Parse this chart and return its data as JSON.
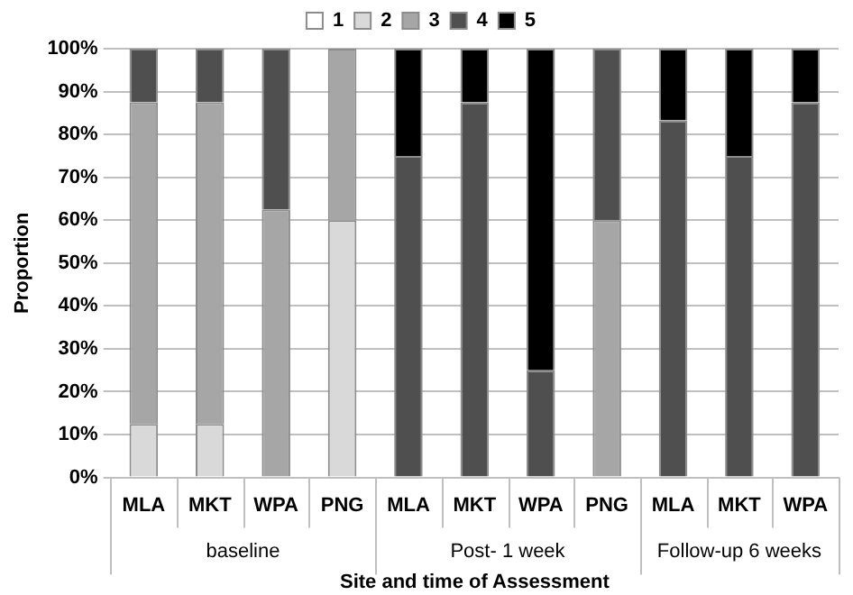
{
  "chart_data": {
    "type": "bar",
    "stacked": true,
    "xlabel": "Site and time of Assessment",
    "ylabel": "Proportion",
    "categories": [
      "MLA",
      "MKT",
      "WPA",
      "PNG",
      "MLA",
      "MKT",
      "WPA",
      "PNG",
      "MLA",
      "MKT",
      "WPA"
    ],
    "series": [
      {
        "name": "1",
        "color": "#ffffff",
        "values": [
          0,
          0,
          0,
          0,
          0,
          0,
          0,
          0,
          0,
          0,
          0
        ]
      },
      {
        "name": "2",
        "color": "#d9d9d9",
        "values": [
          12.5,
          12.5,
          0,
          60,
          0,
          0,
          0,
          0,
          0,
          0,
          0
        ]
      },
      {
        "name": "3",
        "color": "#a6a6a6",
        "values": [
          75,
          75,
          62.5,
          40,
          0,
          0,
          0,
          60,
          0,
          0,
          0
        ]
      },
      {
        "name": "4",
        "color": "#4f4f4f",
        "values": [
          12.5,
          12.5,
          37.5,
          0,
          75,
          87.5,
          25,
          40,
          83.3,
          75,
          87.5
        ]
      },
      {
        "name": "5",
        "color": "#000000",
        "values": [
          0,
          0,
          0,
          0,
          25,
          12.5,
          75,
          0,
          16.7,
          25,
          12.5
        ]
      }
    ],
    "annotations": [
      "baseline",
      "Post- 1 week",
      "Follow-up 6 weeks"
    ],
    "ylim": [
      0,
      100
    ],
    "yticks": [
      {
        "value": 0,
        "label": "0%"
      },
      {
        "value": 10,
        "label": "10%"
      },
      {
        "value": 20,
        "label": "20%"
      },
      {
        "value": 30,
        "label": "30%"
      },
      {
        "value": 40,
        "label": "40%"
      },
      {
        "value": 50,
        "label": "50%"
      },
      {
        "value": 60,
        "label": "60%"
      },
      {
        "value": 70,
        "label": "70%"
      },
      {
        "value": 80,
        "label": "80%"
      },
      {
        "value": 90,
        "label": "90%"
      },
      {
        "value": 100,
        "label": "100%"
      }
    ],
    "grid": "y",
    "legend": "top"
  }
}
